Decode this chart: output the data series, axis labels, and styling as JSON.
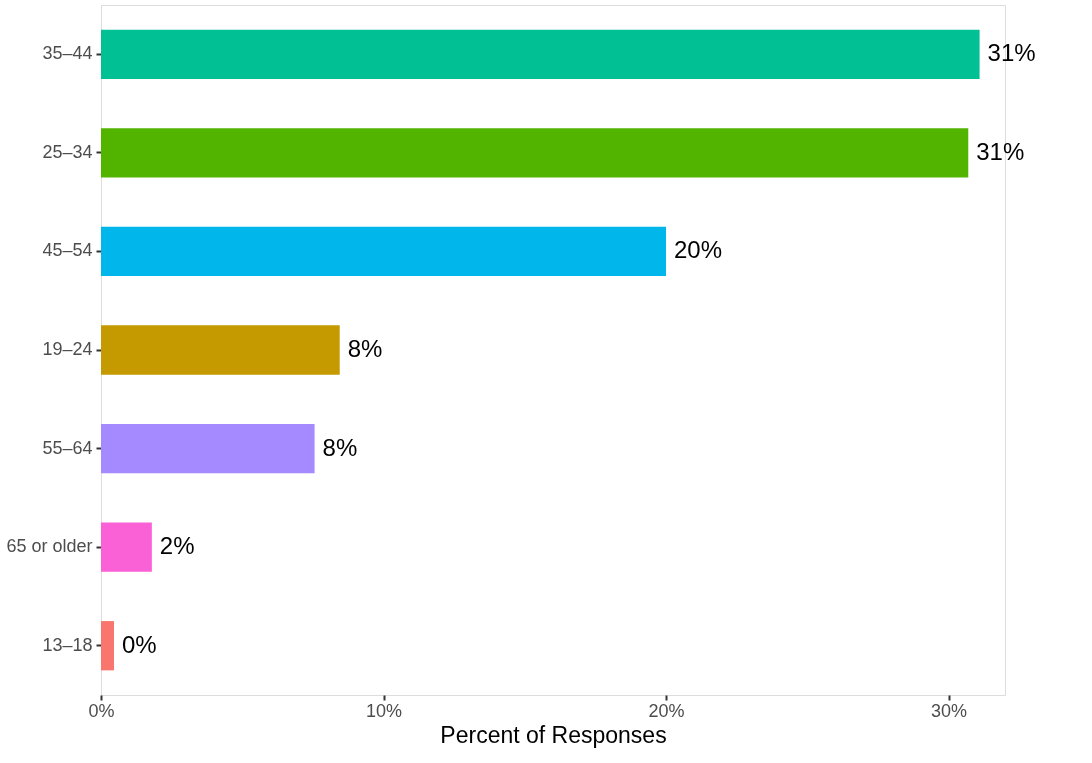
{
  "chart_data": {
    "type": "bar",
    "orientation": "horizontal",
    "xlabel": "Percent of Responses",
    "categories": [
      "35–44",
      "25–34",
      "45–54",
      "19–24",
      "55–64",
      "65 or older",
      "13–18"
    ],
    "values": [
      31.1,
      30.7,
      20.0,
      8.45,
      7.56,
      1.8,
      0.46
    ],
    "colors": [
      "#00c094",
      "#53b400",
      "#00b6eb",
      "#c49a00",
      "#a58aff",
      "#fb61d7",
      "#f8766d"
    ],
    "value_labels": [
      "31%",
      "31%",
      "20%",
      "8%",
      "8%",
      "2%",
      "0%"
    ],
    "xlim": [
      0,
      32
    ],
    "xticks": [
      {
        "value": 0,
        "label": "0%"
      },
      {
        "value": 10,
        "label": "10%"
      },
      {
        "value": 20,
        "label": "20%"
      },
      {
        "value": 30,
        "label": "30%"
      }
    ],
    "grid": false,
    "legend": false
  }
}
